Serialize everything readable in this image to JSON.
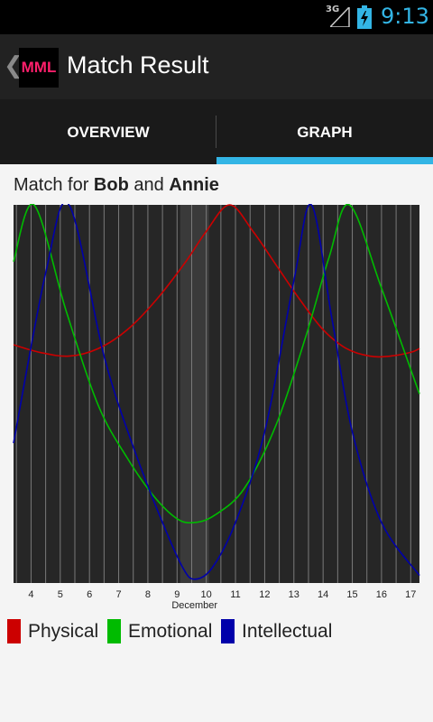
{
  "status_bar": {
    "network": "3G",
    "time": "9:13",
    "time_color": "#33b5e5"
  },
  "action_bar": {
    "logo_text": "MML",
    "logo_color": "#ff1f6b",
    "title": "Match Result"
  },
  "tabs": [
    {
      "label": "OVERVIEW",
      "selected": false
    },
    {
      "label": "GRAPH",
      "selected": true
    }
  ],
  "match": {
    "prefix": "Match for",
    "person_a": "Bob",
    "joiner": "and",
    "person_b": "Annie"
  },
  "chart_data": {
    "type": "line",
    "x_ticks": [
      4,
      5,
      6,
      7,
      8,
      9,
      10,
      11,
      12,
      13,
      14,
      15,
      16,
      17
    ],
    "month_label": "December",
    "xlim": [
      3.4,
      17.3
    ],
    "ylim": [
      0,
      1
    ],
    "highlight_day": 9.6,
    "grid": true,
    "legend_position": "bottom",
    "series": [
      {
        "name": "Physical",
        "color": "#cc0000",
        "x": [
          3.4,
          4.3,
          5.3,
          6.3,
          7.3,
          8.3,
          9.3,
          10.0,
          10.8,
          11.6,
          12.4,
          13.2,
          14.0,
          14.8,
          15.6,
          16.3,
          17.0,
          17.3
        ],
        "y": [
          0.63,
          0.61,
          0.6,
          0.62,
          0.67,
          0.75,
          0.85,
          0.93,
          1.0,
          0.93,
          0.84,
          0.75,
          0.67,
          0.62,
          0.6,
          0.6,
          0.61,
          0.62
        ]
      },
      {
        "name": "Emotional",
        "color": "#00bb00",
        "x": [
          3.4,
          4.1,
          5.2,
          6.3,
          7.3,
          8.2,
          9.0,
          9.6,
          10.3,
          11.3,
          12.4,
          13.4,
          14.2,
          14.9,
          16.0,
          17.3
        ],
        "y": [
          0.85,
          1.0,
          0.72,
          0.47,
          0.33,
          0.23,
          0.17,
          0.16,
          0.18,
          0.25,
          0.42,
          0.65,
          0.86,
          1.0,
          0.78,
          0.5
        ]
      },
      {
        "name": "Intellectual",
        "color": "#0000aa",
        "x": [
          3.4,
          4.5,
          5.3,
          6.5,
          7.5,
          8.5,
          9.2,
          9.6,
          10.2,
          11.0,
          12.0,
          13.0,
          13.6,
          14.3,
          15.0,
          16.0,
          17.3
        ],
        "y": [
          0.37,
          0.82,
          1.0,
          0.6,
          0.36,
          0.16,
          0.04,
          0.01,
          0.04,
          0.16,
          0.4,
          0.8,
          1.0,
          0.7,
          0.4,
          0.16,
          0.02
        ]
      }
    ]
  }
}
